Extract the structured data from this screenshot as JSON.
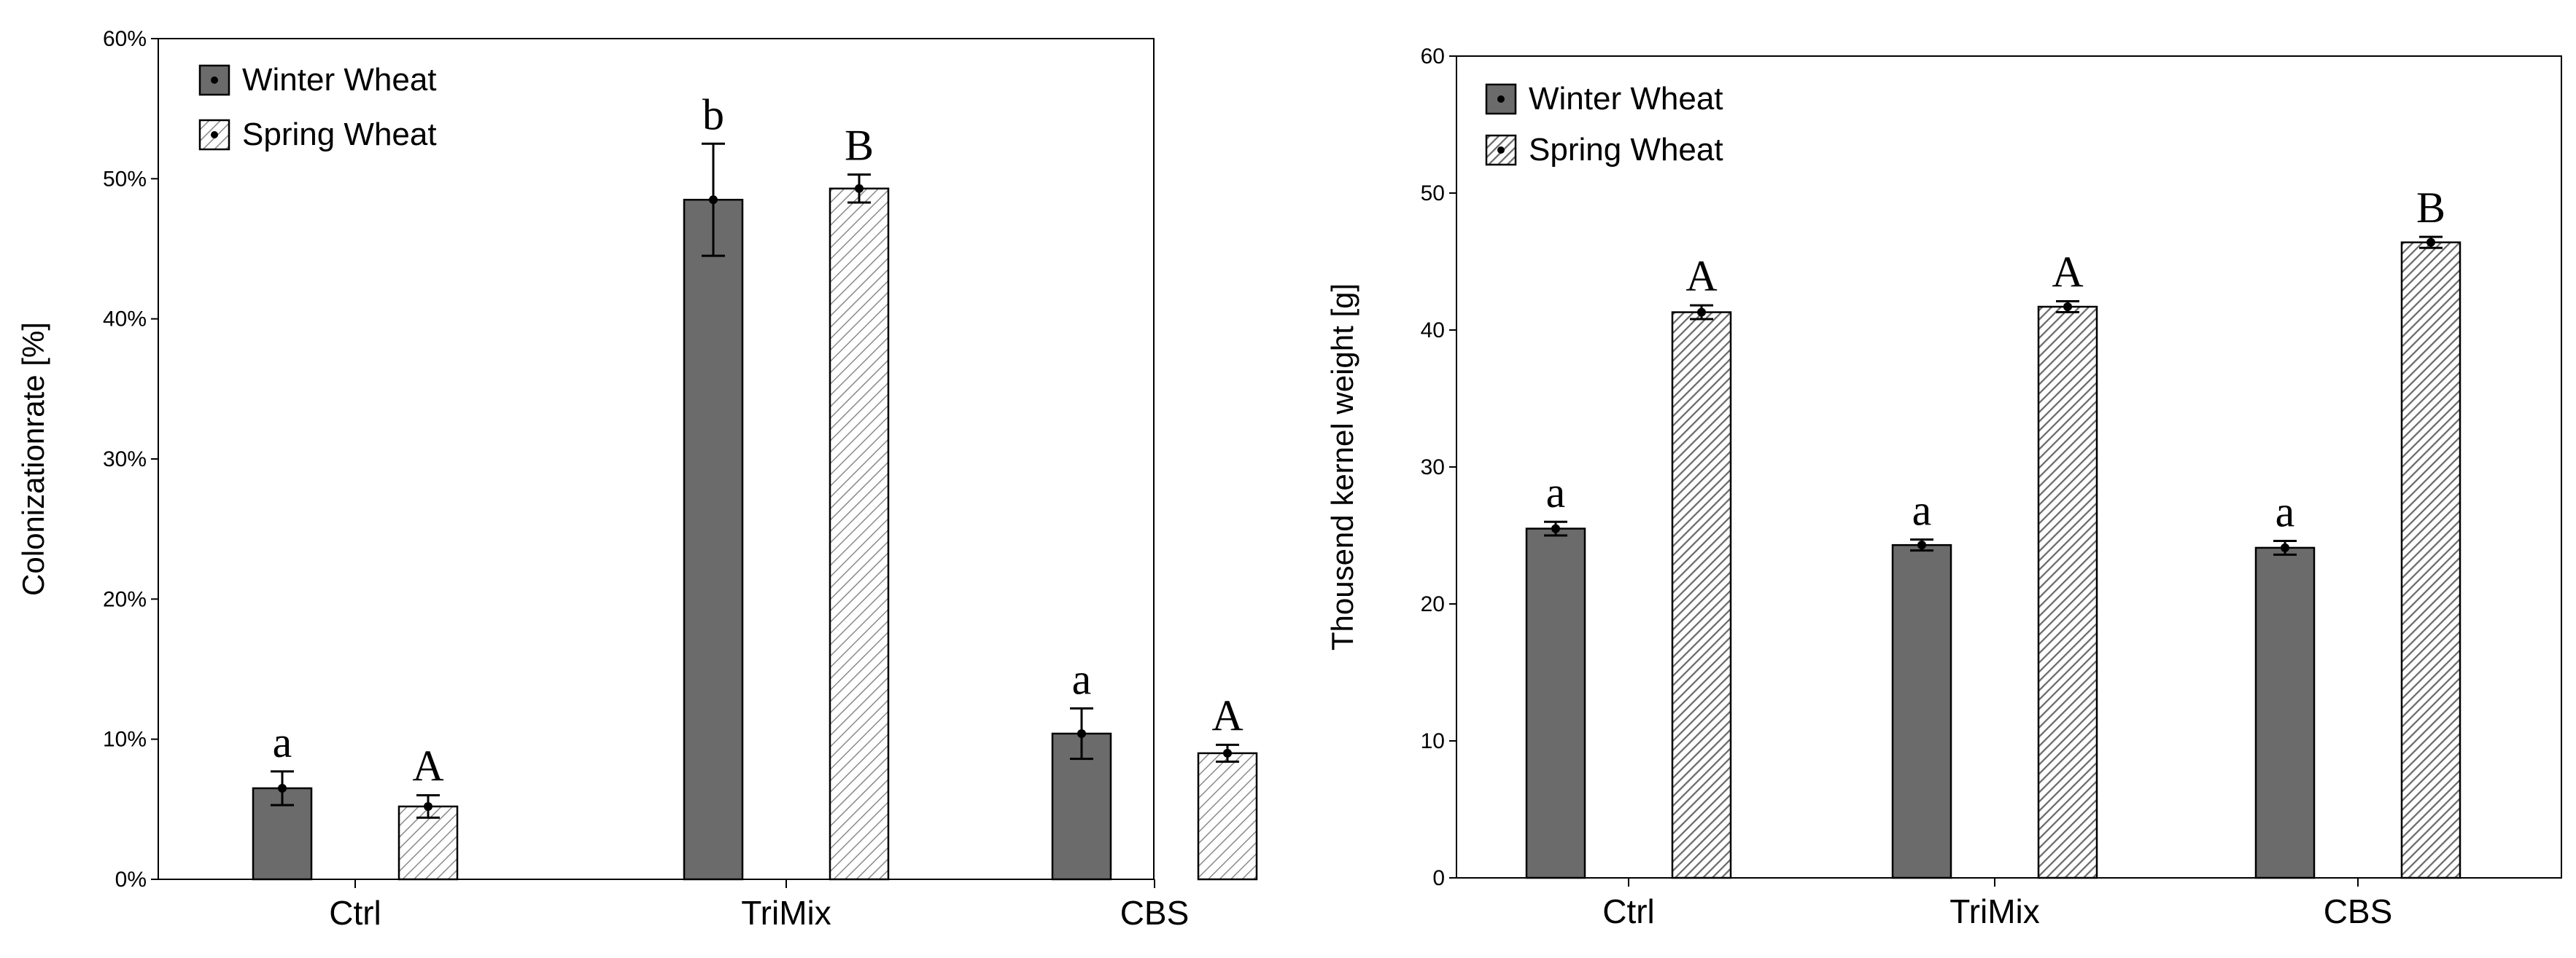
{
  "colors": {
    "winter": "#6b6b6b",
    "spring_stroke": "#777777",
    "axis": "#000000"
  },
  "chart_data": [
    {
      "type": "bar",
      "categories": [
        "Ctrl",
        "TriMix",
        "CBS"
      ],
      "ylabel": "Colonizationrate [%]",
      "xlabel": "",
      "ylim": [
        0,
        60
      ],
      "yticks": [
        0,
        10,
        20,
        30,
        40,
        50,
        60
      ],
      "ytick_labels": [
        "0%",
        "10%",
        "20%",
        "30%",
        "40%",
        "50%",
        "60%"
      ],
      "legend_position": "top-left",
      "series": [
        {
          "name": "Winter Wheat",
          "pattern": "solid",
          "values": [
            6.5,
            48.5,
            10.4
          ],
          "errors": [
            1.2,
            4.0,
            1.8
          ],
          "letters": [
            "a",
            "b",
            "a"
          ]
        },
        {
          "name": "Spring Wheat",
          "pattern": "light-hatch",
          "values": [
            5.2,
            49.3,
            9.0
          ],
          "errors": [
            0.8,
            1.0,
            0.6
          ],
          "letters": [
            "A",
            "B",
            "A"
          ]
        }
      ]
    },
    {
      "type": "bar",
      "categories": [
        "Ctrl",
        "TriMix",
        "CBS"
      ],
      "ylabel": "Thousend kernel weight [g]",
      "xlabel": "",
      "ylim": [
        0,
        60
      ],
      "yticks": [
        0,
        10,
        20,
        30,
        40,
        50,
        60
      ],
      "ytick_labels": [
        "0",
        "10",
        "20",
        "30",
        "40",
        "50",
        "60"
      ],
      "legend_position": "top-left",
      "series": [
        {
          "name": "Winter Wheat",
          "pattern": "solid",
          "values": [
            25.5,
            24.3,
            24.1
          ],
          "errors": [
            0.5,
            0.4,
            0.5
          ],
          "letters": [
            "a",
            "a",
            "a"
          ]
        },
        {
          "name": "Spring Wheat",
          "pattern": "dense-hatch",
          "values": [
            41.3,
            41.7,
            46.4
          ],
          "errors": [
            0.5,
            0.4,
            0.4
          ],
          "letters": [
            "A",
            "A",
            "B"
          ]
        }
      ]
    }
  ]
}
